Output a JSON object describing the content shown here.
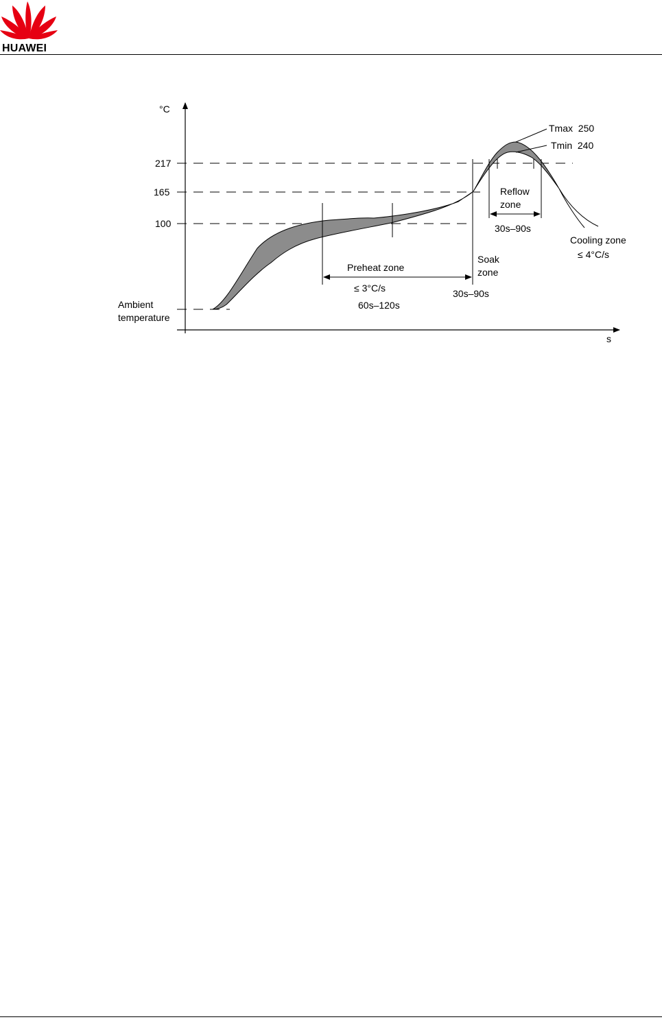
{
  "header": {
    "brand": "HUAWEI",
    "accent_color": "#e60012"
  },
  "figure": {
    "y_unit": "°C",
    "x_unit": "s",
    "temp_labels": {
      "t217": "217",
      "t165": "165",
      "t100": "100"
    },
    "ambient_line1": "Ambient",
    "ambient_line2": "temperature",
    "preheat_zone": "Preheat zone",
    "preheat_rate": "≤ 3°C/s",
    "preheat_time": "60s–120s",
    "soak_line1": "Soak",
    "soak_line2": "zone",
    "soak_time": "30s–90s",
    "reflow_line1": "Reflow",
    "reflow_line2": "zone",
    "reflow_time": "30s–90s",
    "tmax": "Tmax  250",
    "tmin": "Tmin  240",
    "cooling_zone": "Cooling zone",
    "cooling_rate": "≤ 4°C/s",
    "band_color": "#8c8c8c"
  }
}
